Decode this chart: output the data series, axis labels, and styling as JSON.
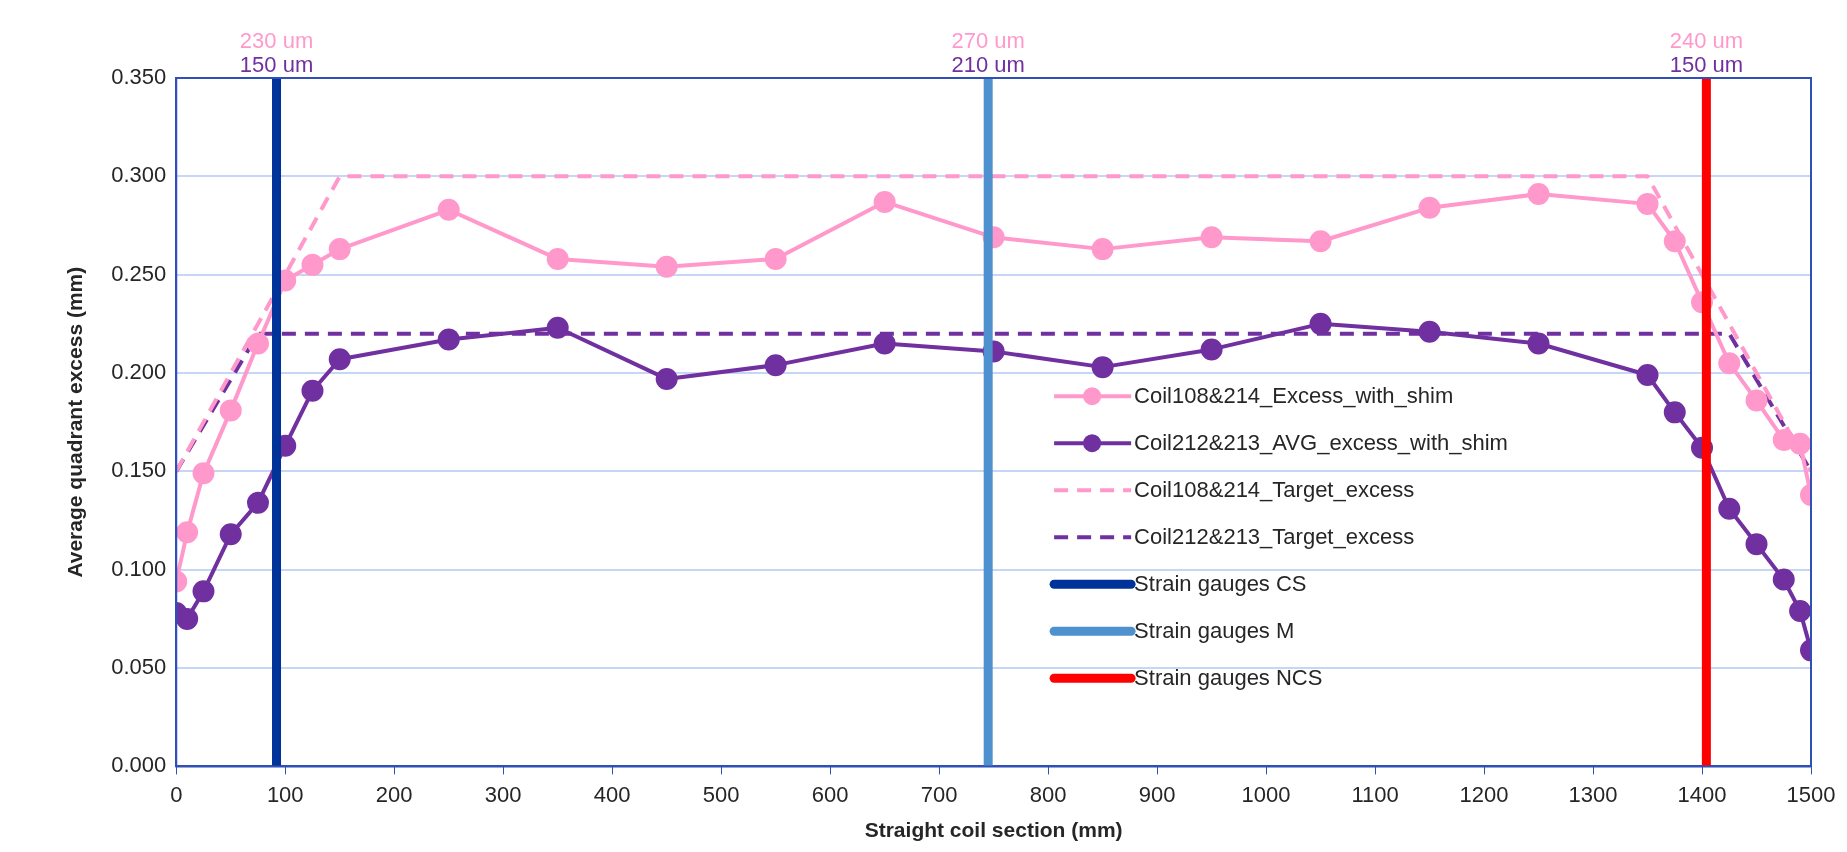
{
  "chart_data": {
    "type": "line",
    "xlabel": "Straight coil section (mm)",
    "ylabel": "Average quadrant excess (mm)",
    "xlim": [
      0,
      1500
    ],
    "xticks": [
      0,
      100,
      200,
      300,
      400,
      500,
      600,
      700,
      800,
      900,
      1000,
      1100,
      1200,
      1300,
      1400,
      1500
    ],
    "ylim": [
      0,
      0.35
    ],
    "yticks": [
      {
        "value": 0,
        "label": "0.000"
      },
      {
        "value": 0.05,
        "label": "0.050"
      },
      {
        "value": 0.1,
        "label": "0.100"
      },
      {
        "value": 0.15,
        "label": "0.150"
      },
      {
        "value": 0.2,
        "label": "0.200"
      },
      {
        "value": 0.25,
        "label": "0.250"
      },
      {
        "value": 0.3,
        "label": "0.300"
      },
      {
        "value": 0.35,
        "label": "0.350"
      }
    ],
    "grid": "y",
    "legend": "right",
    "marker": "circle",
    "line_style": "solid",
    "series": [
      {
        "name": "Coil108&214_Excess_with_shim",
        "color": "#ff99cc",
        "x": [
          0,
          10,
          25,
          50,
          75,
          100,
          125,
          150,
          250,
          350,
          450,
          550,
          650,
          750,
          850,
          950,
          1050,
          1150,
          1250,
          1350,
          1375,
          1400,
          1425,
          1450,
          1475,
          1490,
          1500
        ],
        "values": [
          0.094,
          0.119,
          0.149,
          0.181,
          0.215,
          0.247,
          0.255,
          0.263,
          0.283,
          0.258,
          0.254,
          0.258,
          0.287,
          0.269,
          0.263,
          0.269,
          0.267,
          0.284,
          0.291,
          0.286,
          0.267,
          0.236,
          0.205,
          0.186,
          0.166,
          0.164,
          0.138
        ]
      },
      {
        "name": "Coil212&213_AVG_excess_with_shim",
        "color": "#7030a0",
        "x": [
          0,
          10,
          25,
          50,
          75,
          100,
          125,
          150,
          250,
          350,
          450,
          550,
          650,
          750,
          850,
          950,
          1050,
          1150,
          1250,
          1350,
          1375,
          1400,
          1425,
          1450,
          1475,
          1490,
          1500
        ],
        "values": [
          0.078,
          0.075,
          0.089,
          0.118,
          0.134,
          0.163,
          0.191,
          0.207,
          0.217,
          0.223,
          0.197,
          0.204,
          0.215,
          0.211,
          0.203,
          0.212,
          0.225,
          0.221,
          0.215,
          0.199,
          0.18,
          0.162,
          0.131,
          0.113,
          0.095,
          0.079,
          0.059
        ]
      },
      {
        "name": "Coil108&214_Target_excess",
        "color": "#ff99cc",
        "marker": "none",
        "line_style": "dashed",
        "x": [
          0,
          150,
          1350,
          1500
        ],
        "values": [
          0.15,
          0.3,
          0.3,
          0.15
        ]
      },
      {
        "name": "Coil212&213_Target_excess",
        "color": "#7030a0",
        "marker": "none",
        "line_style": "dashed",
        "x": [
          0,
          75,
          1425,
          1500
        ],
        "values": [
          0.15,
          0.22,
          0.22,
          0.15
        ]
      },
      {
        "name": "Strain gauges CS",
        "color": "#003399",
        "marker": "none",
        "x": [
          92,
          92
        ],
        "values": [
          0,
          0.35
        ]
      },
      {
        "name": "Strain gauges M",
        "color": "#4f91cf",
        "marker": "none",
        "x": [
          745,
          745
        ],
        "values": [
          0,
          0.35
        ]
      },
      {
        "name": "Strain gauges NCS",
        "color": "#ff0000",
        "marker": "none",
        "x": [
          1404,
          1404
        ],
        "values": [
          0,
          0.35
        ]
      }
    ],
    "annotations": [
      "230 um",
      "150 um",
      "270 um",
      "210 um",
      "240 um",
      "150 um"
    ]
  }
}
